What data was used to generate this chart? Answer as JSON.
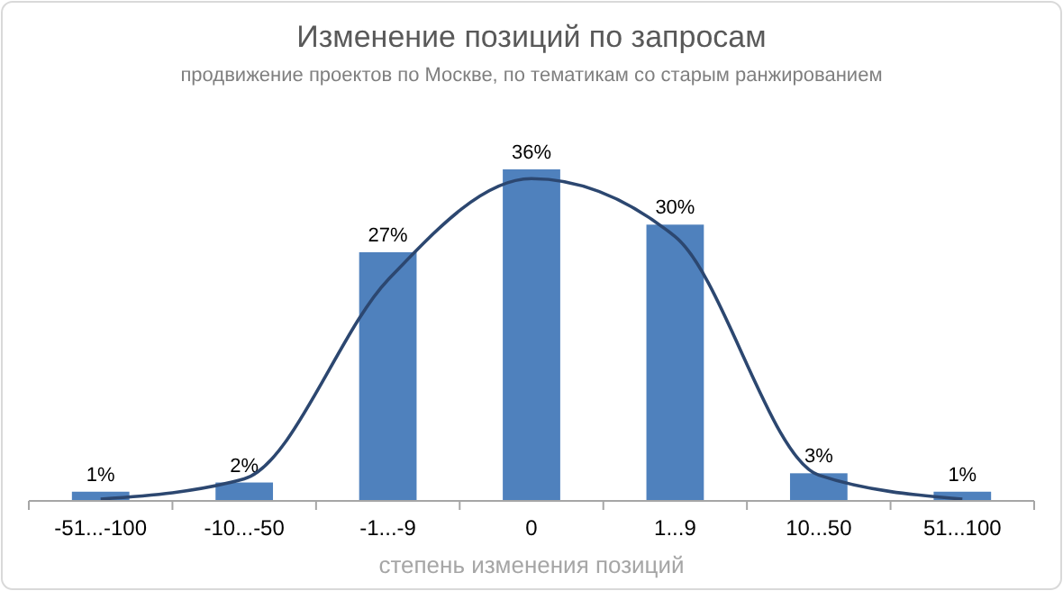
{
  "chart_data": {
    "type": "bar",
    "title": "Изменение позиций по запросам",
    "subtitle": "продвижение проектов по Москве, по тематикам со старым ранжированием",
    "xlabel": "степень изменения позиций",
    "categories": [
      "-51...-100",
      "-10...-50",
      "-1...-9",
      "0",
      "1...9",
      "10...50",
      "51...100"
    ],
    "series": [
      {
        "color": "#4f81bd",
        "values": [
          1,
          2,
          27,
          36,
          30,
          3,
          1
        ],
        "value_labels": [
          "1%",
          "2%",
          "27%",
          "36%",
          "30%",
          "3%",
          "1%"
        ]
      },
      {
        "type": "line",
        "color": "#2c4770",
        "values": [
          0.2,
          2.4,
          24,
          35,
          28.7,
          2.8,
          0.2
        ]
      }
    ]
  }
}
